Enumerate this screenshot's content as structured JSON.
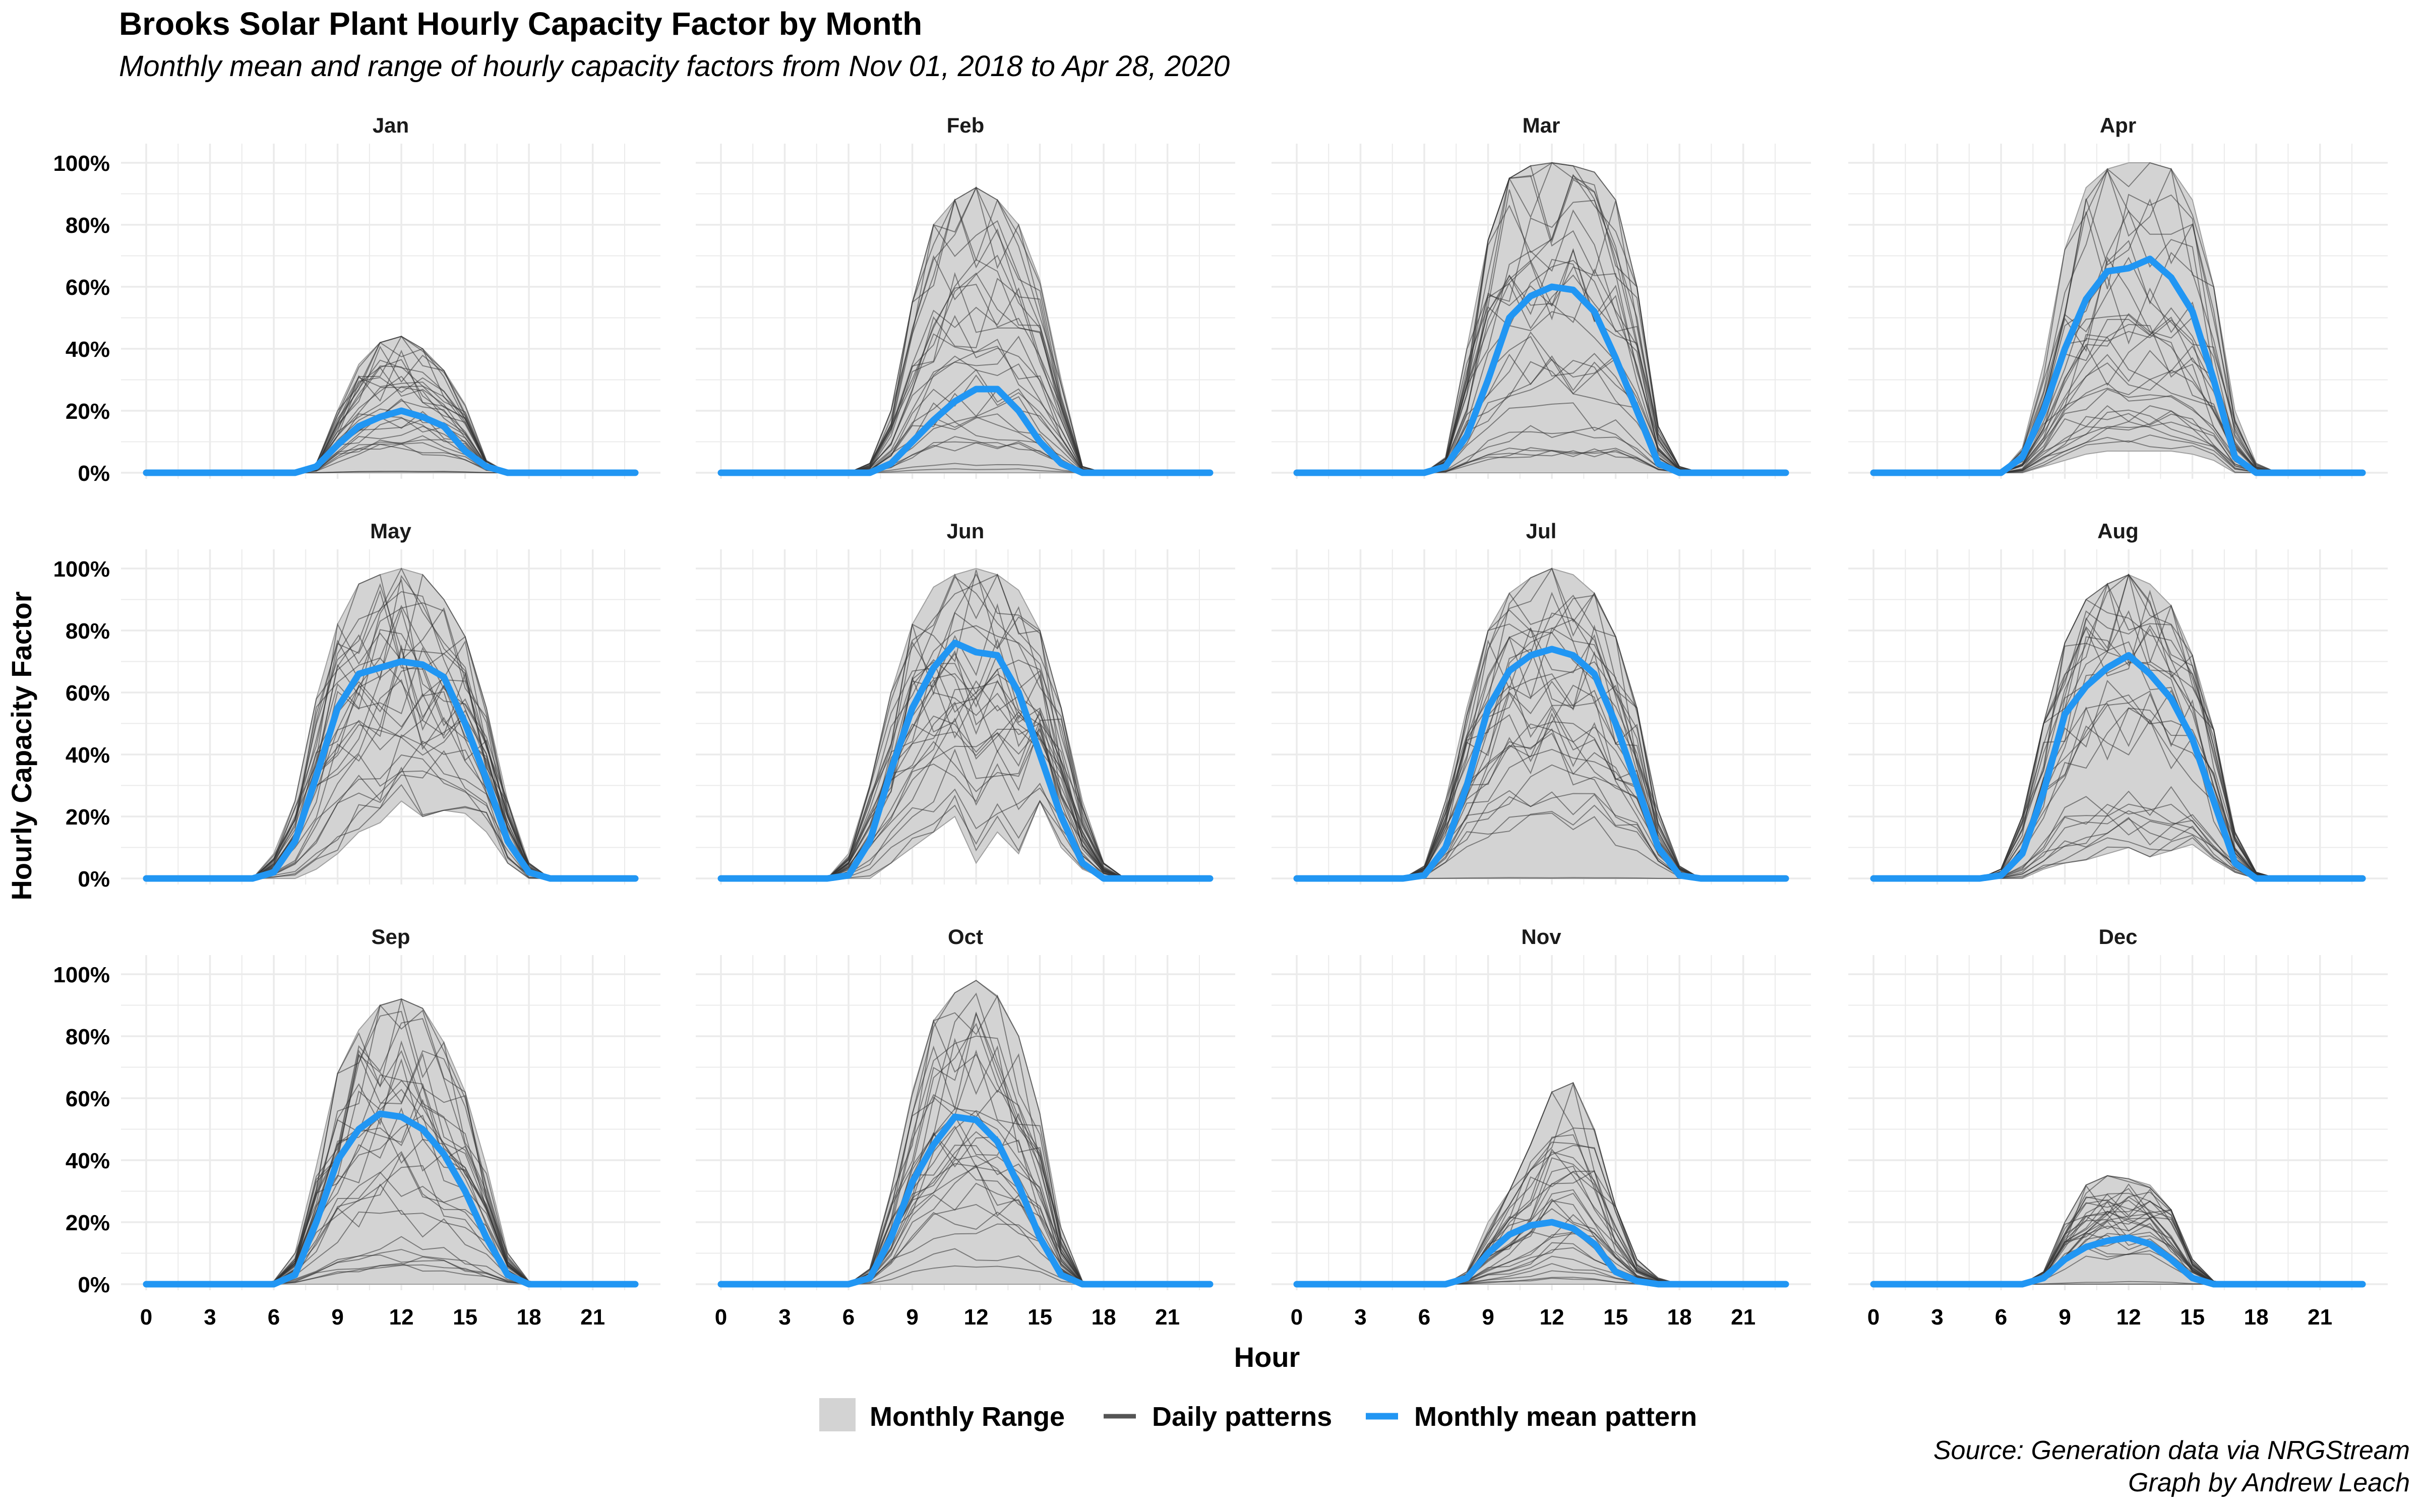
{
  "chart_data": {
    "type": "line",
    "title": "Brooks Solar Plant Hourly Capacity Factor by Month",
    "subtitle": "Monthly mean and range of hourly capacity factors from Nov 01, 2018 to Apr 28, 2020",
    "xlabel": "Hour",
    "ylabel": "Hourly Capacity Factor",
    "x_ticks": [
      0,
      3,
      6,
      9,
      12,
      15,
      18,
      21
    ],
    "y_ticks": [
      "0%",
      "20%",
      "40%",
      "60%",
      "80%",
      "100%"
    ],
    "xlim": [
      0,
      23
    ],
    "ylim": [
      0,
      100
    ],
    "grid": true,
    "legend": {
      "position": "bottom",
      "entries": [
        {
          "label": "Monthly Range",
          "kind": "area",
          "color": "#d3d3d3"
        },
        {
          "label": "Daily patterns",
          "kind": "line",
          "color": "#555555"
        },
        {
          "label": "Monthly mean pattern",
          "kind": "line",
          "color": "#2196f3"
        }
      ]
    },
    "colors": {
      "mean": "#2196f3",
      "range": "#d3d3d3",
      "daily": "#333333",
      "grid": "#ebebeb"
    },
    "panels": [
      {
        "name": "Jan",
        "mean": [
          0,
          0,
          0,
          0,
          0,
          0,
          0,
          0,
          2,
          9,
          15,
          18,
          20,
          18,
          15,
          7,
          2,
          0,
          0,
          0,
          0,
          0,
          0,
          0
        ],
        "max": [
          0,
          0,
          0,
          0,
          0,
          0,
          0,
          0,
          3,
          20,
          35,
          42,
          44,
          40,
          33,
          22,
          4,
          0,
          0,
          0,
          0,
          0,
          0,
          0
        ],
        "min": [
          0,
          0,
          0,
          0,
          0,
          0,
          0,
          0,
          0,
          0,
          0,
          0,
          0,
          0,
          0,
          0,
          0,
          0,
          0,
          0,
          0,
          0,
          0,
          0
        ]
      },
      {
        "name": "Feb",
        "mean": [
          0,
          0,
          0,
          0,
          0,
          0,
          0,
          0,
          3,
          10,
          17,
          23,
          27,
          27,
          20,
          10,
          3,
          0,
          0,
          0,
          0,
          0,
          0,
          0
        ],
        "max": [
          0,
          0,
          0,
          0,
          0,
          0,
          0,
          3,
          20,
          55,
          80,
          88,
          92,
          88,
          80,
          62,
          30,
          2,
          0,
          0,
          0,
          0,
          0,
          0
        ],
        "min": [
          0,
          0,
          0,
          0,
          0,
          0,
          0,
          0,
          0,
          0,
          0,
          0,
          0,
          0,
          0,
          0,
          0,
          0,
          0,
          0,
          0,
          0,
          0,
          0
        ]
      },
      {
        "name": "Mar",
        "mean": [
          0,
          0,
          0,
          0,
          0,
          0,
          0,
          2,
          12,
          30,
          50,
          57,
          60,
          59,
          52,
          37,
          20,
          3,
          0,
          0,
          0,
          0,
          0,
          0
        ],
        "max": [
          0,
          0,
          0,
          0,
          0,
          0,
          0,
          5,
          40,
          75,
          95,
          99,
          100,
          99,
          97,
          88,
          60,
          15,
          2,
          0,
          0,
          0,
          0,
          0
        ],
        "min": [
          0,
          0,
          0,
          0,
          0,
          0,
          0,
          0,
          0,
          0,
          0,
          0,
          0,
          0,
          0,
          0,
          0,
          0,
          0,
          0,
          0,
          0,
          0,
          0
        ]
      },
      {
        "name": "Apr",
        "mean": [
          0,
          0,
          0,
          0,
          0,
          0,
          0,
          5,
          20,
          40,
          56,
          65,
          66,
          69,
          63,
          52,
          30,
          5,
          0,
          0,
          0,
          0,
          0,
          0
        ],
        "max": [
          0,
          0,
          0,
          0,
          0,
          0,
          0,
          8,
          35,
          72,
          92,
          98,
          100,
          100,
          98,
          88,
          60,
          20,
          3,
          0,
          0,
          0,
          0,
          0
        ],
        "min": [
          0,
          0,
          0,
          0,
          0,
          0,
          0,
          0,
          2,
          4,
          6,
          7,
          7,
          7,
          7,
          6,
          4,
          0,
          0,
          0,
          0,
          0,
          0,
          0
        ]
      },
      {
        "name": "May",
        "mean": [
          0,
          0,
          0,
          0,
          0,
          0,
          2,
          12,
          33,
          55,
          66,
          68,
          70,
          69,
          65,
          50,
          32,
          12,
          2,
          0,
          0,
          0,
          0,
          0
        ],
        "max": [
          0,
          0,
          0,
          0,
          0,
          0,
          8,
          25,
          58,
          82,
          95,
          98,
          100,
          98,
          90,
          78,
          55,
          25,
          5,
          0,
          0,
          0,
          0,
          0
        ],
        "min": [
          0,
          0,
          0,
          0,
          0,
          0,
          0,
          0,
          3,
          8,
          15,
          18,
          25,
          20,
          22,
          21,
          15,
          5,
          0,
          0,
          0,
          0,
          0,
          0
        ]
      },
      {
        "name": "Jun",
        "mean": [
          0,
          0,
          0,
          0,
          0,
          0,
          1,
          12,
          35,
          55,
          68,
          76,
          73,
          72,
          60,
          40,
          20,
          5,
          0,
          0,
          0,
          0,
          0,
          0
        ],
        "max": [
          0,
          0,
          0,
          0,
          0,
          0,
          8,
          30,
          60,
          82,
          94,
          98,
          100,
          98,
          93,
          80,
          55,
          25,
          5,
          0,
          0,
          0,
          0,
          0
        ],
        "min": [
          0,
          0,
          0,
          0,
          0,
          0,
          0,
          0,
          5,
          10,
          15,
          20,
          5,
          15,
          8,
          25,
          10,
          3,
          0,
          0,
          0,
          0,
          0,
          0
        ]
      },
      {
        "name": "Jul",
        "mean": [
          0,
          0,
          0,
          0,
          0,
          0,
          1,
          10,
          30,
          55,
          67,
          72,
          74,
          72,
          66,
          50,
          30,
          10,
          1,
          0,
          0,
          0,
          0,
          0
        ],
        "max": [
          0,
          0,
          0,
          0,
          0,
          0,
          4,
          25,
          55,
          80,
          92,
          97,
          100,
          98,
          92,
          78,
          55,
          22,
          4,
          0,
          0,
          0,
          0,
          0
        ],
        "min": [
          0,
          0,
          0,
          0,
          0,
          0,
          0,
          0,
          0,
          0,
          0,
          0,
          0,
          0,
          0,
          0,
          0,
          0,
          0,
          0,
          0,
          0,
          0,
          0
        ]
      },
      {
        "name": "Aug",
        "mean": [
          0,
          0,
          0,
          0,
          0,
          0,
          1,
          8,
          28,
          53,
          62,
          68,
          72,
          66,
          58,
          45,
          25,
          5,
          0,
          0,
          0,
          0,
          0,
          0
        ],
        "max": [
          0,
          0,
          0,
          0,
          0,
          0,
          3,
          20,
          50,
          76,
          90,
          95,
          98,
          95,
          88,
          72,
          48,
          15,
          2,
          0,
          0,
          0,
          0,
          0
        ],
        "min": [
          0,
          0,
          0,
          0,
          0,
          0,
          0,
          0,
          3,
          5,
          6,
          8,
          10,
          7,
          9,
          11,
          6,
          2,
          0,
          0,
          0,
          0,
          0,
          0
        ]
      },
      {
        "name": "Sep",
        "mean": [
          0,
          0,
          0,
          0,
          0,
          0,
          0,
          3,
          20,
          40,
          50,
          55,
          54,
          50,
          42,
          30,
          15,
          3,
          0,
          0,
          0,
          0,
          0,
          0
        ],
        "max": [
          0,
          0,
          0,
          0,
          0,
          0,
          1,
          10,
          38,
          68,
          82,
          90,
          92,
          89,
          78,
          62,
          38,
          10,
          1,
          0,
          0,
          0,
          0,
          0
        ],
        "min": [
          0,
          0,
          0,
          0,
          0,
          0,
          0,
          0,
          0,
          0,
          0,
          0,
          0,
          0,
          0,
          0,
          0,
          0,
          0,
          0,
          0,
          0,
          0,
          0
        ]
      },
      {
        "name": "Oct",
        "mean": [
          0,
          0,
          0,
          0,
          0,
          0,
          0,
          2,
          15,
          33,
          45,
          54,
          53,
          46,
          32,
          15,
          3,
          0,
          0,
          0,
          0,
          0,
          0,
          0
        ],
        "max": [
          0,
          0,
          0,
          0,
          0,
          0,
          0,
          5,
          30,
          62,
          85,
          94,
          98,
          93,
          80,
          55,
          18,
          1,
          0,
          0,
          0,
          0,
          0,
          0
        ],
        "min": [
          0,
          0,
          0,
          0,
          0,
          0,
          0,
          0,
          0,
          0,
          0,
          0,
          0,
          0,
          0,
          0,
          0,
          0,
          0,
          0,
          0,
          0,
          0,
          0
        ]
      },
      {
        "name": "Nov",
        "mean": [
          0,
          0,
          0,
          0,
          0,
          0,
          0,
          0,
          2,
          10,
          16,
          19,
          20,
          18,
          13,
          4,
          1,
          0,
          0,
          0,
          0,
          0,
          0,
          0
        ],
        "max": [
          0,
          0,
          0,
          0,
          0,
          0,
          0,
          0,
          4,
          20,
          30,
          45,
          62,
          65,
          50,
          25,
          8,
          2,
          0,
          0,
          0,
          0,
          0,
          0
        ],
        "min": [
          0,
          0,
          0,
          0,
          0,
          0,
          0,
          0,
          0,
          0,
          0,
          0,
          0,
          0,
          0,
          0,
          0,
          0,
          0,
          0,
          0,
          0,
          0,
          0
        ]
      },
      {
        "name": "Dec",
        "mean": [
          0,
          0,
          0,
          0,
          0,
          0,
          0,
          0,
          2,
          8,
          12,
          14,
          15,
          13,
          8,
          2,
          0,
          0,
          0,
          0,
          0,
          0,
          0,
          0
        ],
        "max": [
          0,
          0,
          0,
          0,
          0,
          0,
          0,
          0,
          4,
          20,
          32,
          35,
          34,
          32,
          24,
          8,
          1,
          0,
          0,
          0,
          0,
          0,
          0,
          0
        ],
        "min": [
          0,
          0,
          0,
          0,
          0,
          0,
          0,
          0,
          0,
          0,
          0,
          0,
          0,
          0,
          0,
          0,
          0,
          0,
          0,
          0,
          0,
          0,
          0,
          0
        ]
      }
    ]
  },
  "caption": {
    "source": "Source: Generation data via NRGStream",
    "credit": "Graph by Andrew Leach"
  }
}
